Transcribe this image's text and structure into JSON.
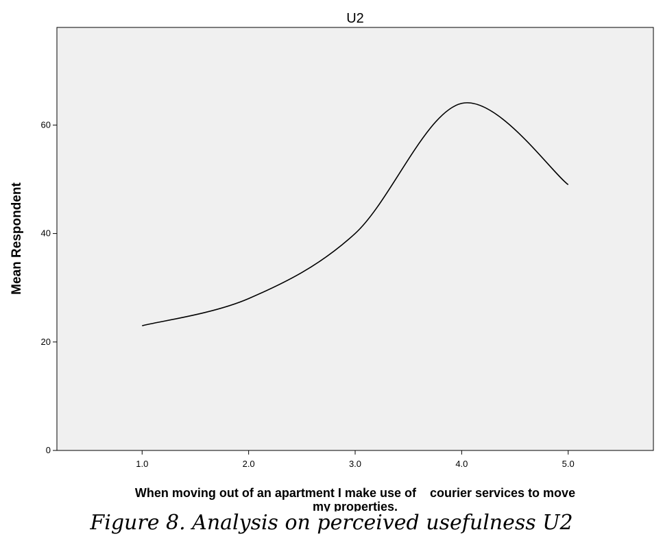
{
  "chart_data": {
    "type": "line",
    "title": "U2",
    "xlabel_lines": [
      "When moving out of an apartment I make use of    courier services to move",
      "my properties."
    ],
    "ylabel": "Mean Respondent",
    "x": [
      1.0,
      2.0,
      3.0,
      4.0,
      5.0
    ],
    "y": [
      23,
      28,
      40,
      64,
      49
    ],
    "x_tick_labels": [
      "1.0",
      "2.0",
      "3.0",
      "4.0",
      "5.0"
    ],
    "y_ticks": [
      0,
      20,
      40,
      60
    ],
    "y_tick_labels": [
      "0",
      "20",
      "40",
      "60"
    ],
    "xlim": [
      0.2,
      5.8
    ],
    "ylim": [
      0,
      78
    ],
    "grid": false,
    "legend": "none",
    "colors": {
      "plot_background": "#f0f0f0",
      "line": "#000000"
    }
  },
  "caption": "Figure 8. Analysis on perceived usefulness U2"
}
